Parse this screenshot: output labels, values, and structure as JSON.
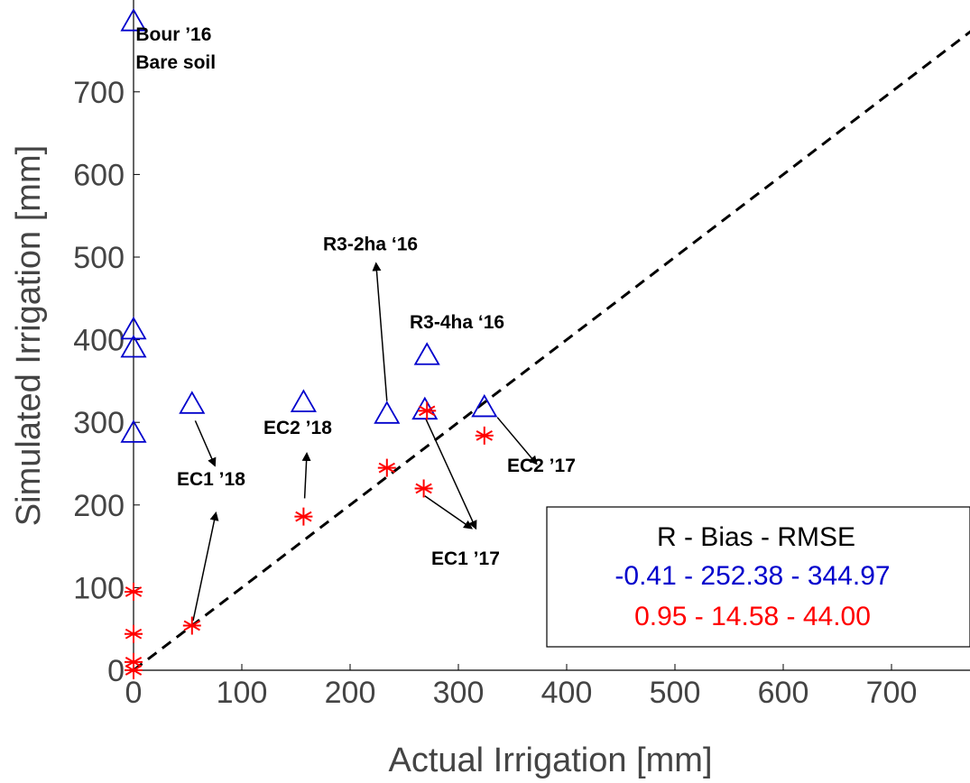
{
  "chart_data": {
    "type": "scatter",
    "title": "",
    "xlabel": "Actual Irrigation [mm]",
    "ylabel": "Simulated Irrigation [mm]",
    "xlim": [
      0,
      775
    ],
    "ylim": [
      0,
      775
    ],
    "xticks": [
      0,
      100,
      200,
      300,
      400,
      500,
      600,
      700
    ],
    "yticks": [
      0,
      100,
      200,
      300,
      400,
      500,
      600,
      700
    ],
    "grid": false,
    "reference_line": {
      "style": "dashed",
      "color": "#000000",
      "from": [
        0,
        0
      ],
      "to": [
        775,
        775
      ]
    },
    "series": [
      {
        "marker": "triangle",
        "color": "#0000cc",
        "points": [
          {
            "x": 0,
            "y": 785
          },
          {
            "x": 0,
            "y": 412
          },
          {
            "x": 0,
            "y": 390
          },
          {
            "x": 0,
            "y": 287
          },
          {
            "x": 54,
            "y": 322
          },
          {
            "x": 157,
            "y": 324
          },
          {
            "x": 234,
            "y": 310
          },
          {
            "x": 269,
            "y": 315
          },
          {
            "x": 271,
            "y": 381
          },
          {
            "x": 324,
            "y": 318
          }
        ]
      },
      {
        "marker": "asterisk",
        "color": "#ff0000",
        "points": [
          {
            "x": 0,
            "y": 0
          },
          {
            "x": 0,
            "y": 10
          },
          {
            "x": 0,
            "y": 44
          },
          {
            "x": 0,
            "y": 95
          },
          {
            "x": 54,
            "y": 54
          },
          {
            "x": 157,
            "y": 186
          },
          {
            "x": 234,
            "y": 245
          },
          {
            "x": 268,
            "y": 220
          },
          {
            "x": 271,
            "y": 314
          },
          {
            "x": 324,
            "y": 284
          }
        ]
      }
    ],
    "annotations": [
      {
        "text": "Bour ’16",
        "x": 2,
        "y": 762
      },
      {
        "text": "Bare soil",
        "x": 2,
        "y": 728
      },
      {
        "text": "R3-2ha ‘16",
        "x": 175,
        "y": 508
      },
      {
        "text": "R3-4ha ‘16",
        "x": 255,
        "y": 414
      },
      {
        "text": "EC2 ’18",
        "x": 120,
        "y": 286
      },
      {
        "text": "EC1 ’18",
        "x": 40,
        "y": 224
      },
      {
        "text": "EC2 ’17",
        "x": 345,
        "y": 240
      },
      {
        "text": "EC1 ’17",
        "x": 275,
        "y": 128
      }
    ],
    "arrows": [
      {
        "from": [
          57,
          302
        ],
        "to": [
          75,
          248
        ]
      },
      {
        "from": [
          158,
          208
        ],
        "to": [
          160,
          262
        ]
      },
      {
        "from": [
          55,
          60
        ],
        "to": [
          76,
          190
        ]
      },
      {
        "from": [
          234,
          326
        ],
        "to": [
          224,
          492
        ]
      },
      {
        "from": [
          270,
          304
        ],
        "to": [
          316,
          172
        ]
      },
      {
        "from": [
          269,
          211
        ],
        "to": [
          312,
          172
        ]
      },
      {
        "from": [
          336,
          306
        ],
        "to": [
          372,
          250
        ]
      }
    ],
    "legend": {
      "placement": "bottom-right",
      "header": "R - Bias - RMSE",
      "rows": [
        {
          "text": "-0.41 -  252.38 - 344.97",
          "color": "#0000cc"
        },
        {
          "text": "0.95 - 14.58 - 44.00",
          "color": "#ff0000"
        }
      ]
    }
  }
}
